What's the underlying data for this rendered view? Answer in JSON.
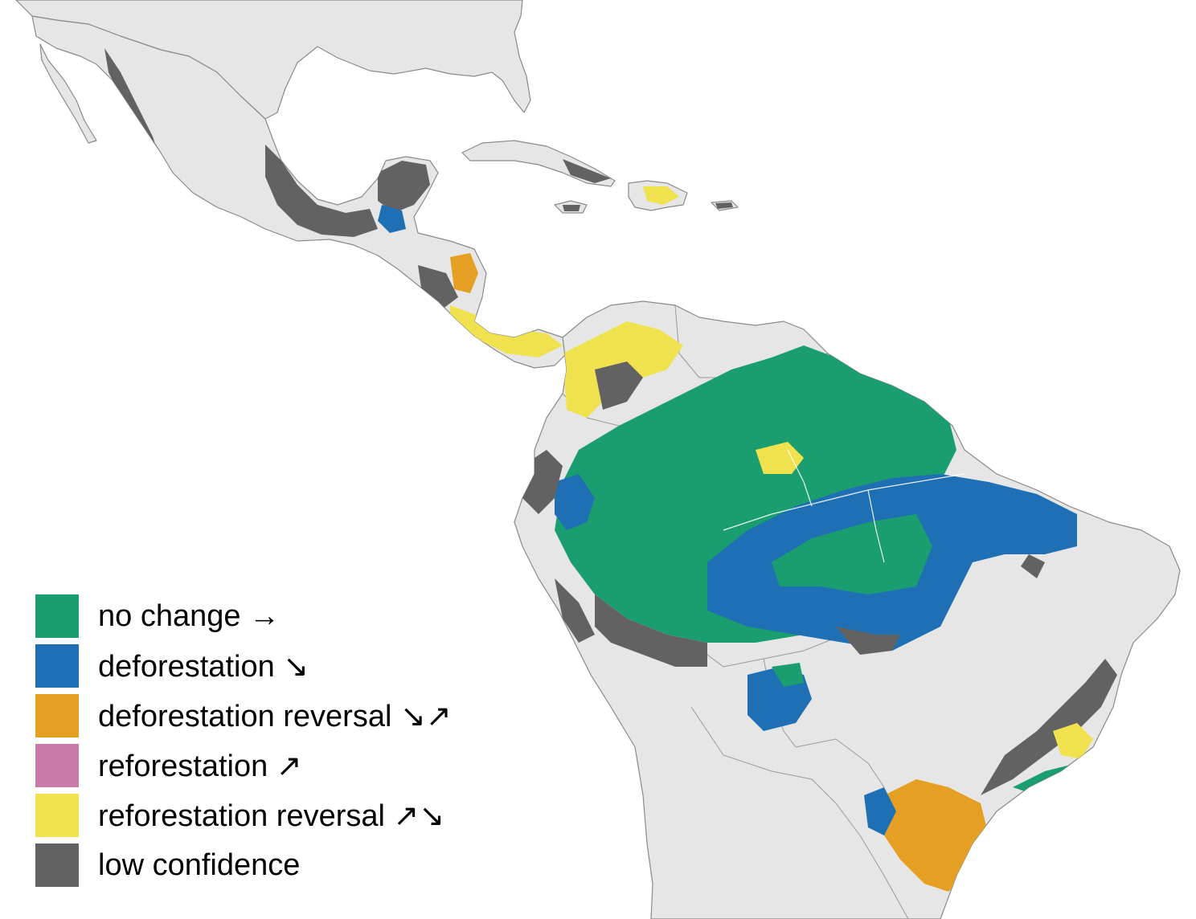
{
  "colors": {
    "land": "#e6e6e6",
    "outline": "#8a8a8a",
    "no_change": "#1b9e6f",
    "deforestation": "#1f6fb4",
    "deforestation_reversal": "#e5a023",
    "reforestation": "#c97aa8",
    "reforestation_reversal": "#efe24e",
    "low_confidence": "#626262"
  },
  "legend": {
    "items": [
      {
        "key": "no_change",
        "label": "no change →",
        "color": "#1b9e6f"
      },
      {
        "key": "deforestation",
        "label": "deforestation ↘",
        "color": "#1f6fb4"
      },
      {
        "key": "deforestation_reversal",
        "label": "deforestation reversal ↘↗",
        "color": "#e5a023"
      },
      {
        "key": "reforestation",
        "label": "reforestation ↗",
        "color": "#c97aa8"
      },
      {
        "key": "reforestation_reversal",
        "label": "reforestation reversal ↗↘",
        "color": "#efe24e"
      },
      {
        "key": "low_confidence",
        "label": "low confidence",
        "color": "#626262"
      }
    ]
  }
}
